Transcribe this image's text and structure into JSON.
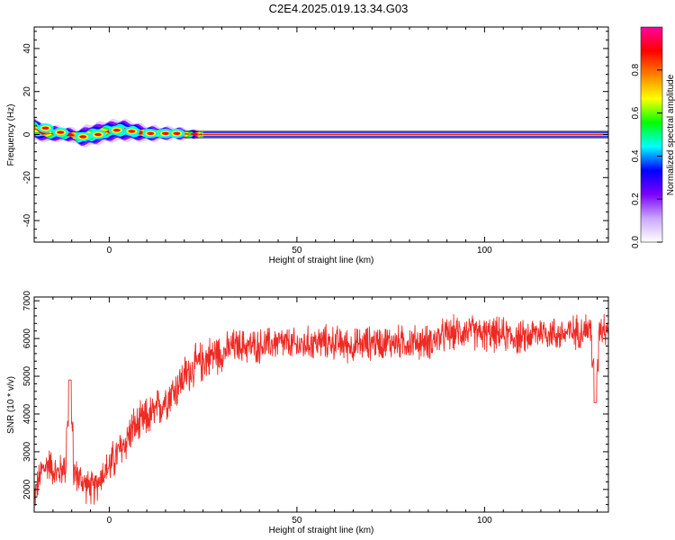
{
  "figure": {
    "title": "C2E4.2025.019.13.34.G03"
  },
  "colors": {
    "background": "#ffffff",
    "axis": "#000000",
    "snr_line": "#ee2a24",
    "spectrum_core": "#ff1a1a"
  },
  "chart_data": [
    {
      "type": "heatmap",
      "title": "",
      "xlabel": "Height of straight line (km)",
      "ylabel": "Frequency (Hz)",
      "xlim": [
        -20,
        133
      ],
      "ylim": [
        -50,
        50
      ],
      "xticks": [
        0,
        50,
        100
      ],
      "yticks": [
        -40,
        -20,
        0,
        20,
        40
      ],
      "grid": false,
      "colorbar": {
        "label": "Normalized spectral amplitude",
        "range": [
          0,
          1
        ],
        "ticks": [
          0.0,
          0.2,
          0.4,
          0.6,
          0.8
        ],
        "tick_labels": [
          "0.0",
          "0.2",
          "0.4",
          "0.6",
          "0.8"
        ],
        "colormap": [
          "#ffffff",
          "#c9a6ff",
          "#7a00ff",
          "#0000ff",
          "#00ffff",
          "#00ff00",
          "#ffff00",
          "#ff8000",
          "#ff0000",
          "#ff00a0"
        ]
      },
      "ridge": {
        "description_values": "frequency of spectral peak vs height",
        "x": [
          -20,
          -19,
          -18,
          -16,
          -14,
          -12,
          -10,
          -8,
          -6,
          -4,
          -2,
          0,
          2,
          4,
          6,
          8,
          10,
          12,
          15,
          18,
          20,
          22,
          25,
          30,
          40,
          60,
          80,
          100,
          120,
          133
        ],
        "y": [
          3,
          2,
          1,
          0.5,
          0.5,
          0,
          0,
          -1.5,
          -0.5,
          0,
          1,
          1.5,
          2,
          2,
          1.5,
          1,
          0.5,
          0.5,
          0.5,
          0.5,
          0.3,
          0.2,
          0,
          0,
          0,
          0,
          0,
          0,
          0,
          0
        ],
        "spread_hz": [
          6,
          5,
          4,
          4,
          3.5,
          3.5,
          3,
          4,
          5,
          5,
          5,
          5,
          5,
          5,
          4.5,
          4,
          3.5,
          3.5,
          3,
          3,
          2.5,
          2,
          1.5,
          1.5,
          1.5,
          1.5,
          1.5,
          1.5,
          1.5,
          1.5
        ]
      }
    },
    {
      "type": "line",
      "title": "",
      "xlabel": "Height of straight line (km)",
      "ylabel": "SNR (10 * v/v)",
      "xlim": [
        -20,
        133
      ],
      "ylim": [
        1400,
        7100
      ],
      "xticks": [
        0,
        50,
        100
      ],
      "yticks": [
        2000,
        3000,
        4000,
        5000,
        6000,
        7000
      ],
      "grid": false,
      "series": [
        {
          "name": "",
          "x": [
            -20,
            -18,
            -16,
            -14,
            -12,
            -10,
            -8,
            -6,
            -4,
            -2,
            0,
            2,
            4,
            6,
            8,
            10,
            12,
            15,
            18,
            20,
            22,
            25,
            28,
            30,
            33,
            36,
            40,
            45,
            50,
            55,
            60,
            65,
            70,
            75,
            80,
            85,
            90,
            95,
            100,
            105,
            110,
            115,
            120,
            125,
            130,
            133
          ],
          "values": [
            1800,
            2500,
            2700,
            2400,
            2600,
            2500,
            2300,
            2100,
            2000,
            2400,
            2600,
            2900,
            3200,
            3600,
            3700,
            3900,
            4000,
            4400,
            4700,
            5000,
            5200,
            5400,
            5600,
            5600,
            5800,
            5800,
            5800,
            5900,
            5800,
            5900,
            5900,
            5800,
            5900,
            5900,
            5900,
            5900,
            6100,
            6200,
            6100,
            6100,
            6000,
            6200,
            6100,
            6200,
            6300,
            6300
          ]
        }
      ],
      "annotations": [
        {
          "x": -10.5,
          "y": 4900,
          "note": "spike"
        },
        {
          "x": 129.5,
          "y": 4300,
          "note": "dip"
        }
      ]
    }
  ]
}
